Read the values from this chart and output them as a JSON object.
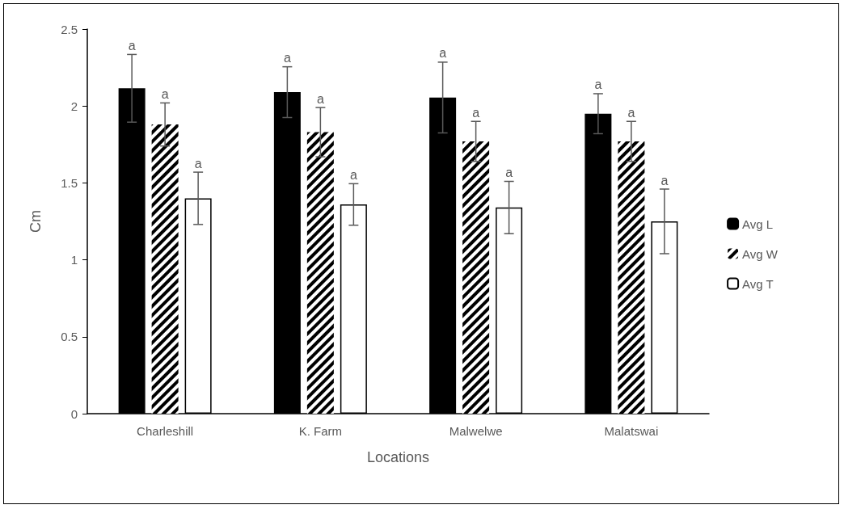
{
  "chart_data": {
    "type": "bar",
    "xlabel": "Locations",
    "ylabel": "Cm",
    "categories": [
      "Charleshill",
      "K. Farm",
      "Malwelwe",
      "Malatswai"
    ],
    "series": [
      {
        "name": "Avg L",
        "color": "#000000",
        "values": [
          2.115,
          2.09,
          2.055,
          1.95
        ],
        "errors": [
          0.22,
          0.165,
          0.23,
          0.13
        ],
        "value_labels": [
          "a",
          "a",
          "a",
          "a"
        ]
      },
      {
        "name": "Avg W",
        "color": "#000000",
        "values": [
          1.88,
          1.83,
          1.77,
          1.77
        ],
        "errors": [
          0.14,
          0.16,
          0.13,
          0.13
        ],
        "value_labels": [
          "a",
          "a",
          "a",
          "a"
        ]
      },
      {
        "name": "Avg T",
        "color": "#ffffff",
        "values": [
          1.4,
          1.36,
          1.34,
          1.25
        ],
        "errors": [
          0.17,
          0.135,
          0.17,
          0.21
        ],
        "value_labels": [
          "a",
          "a",
          "a",
          "a"
        ]
      }
    ],
    "ylim": [
      0,
      2.5
    ],
    "yticks": [
      0,
      0.5,
      1,
      1.5,
      2,
      2.5
    ],
    "grid": false,
    "legend": "right"
  }
}
